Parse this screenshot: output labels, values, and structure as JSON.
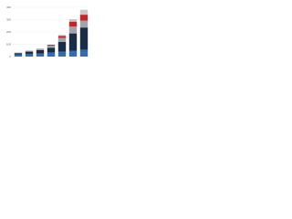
{
  "chart_data": {
    "type": "stacked_bar",
    "categories": [
      null,
      null,
      null,
      null,
      null,
      null,
      null
    ],
    "series": [
      {
        "color": "#2f6db5",
        "values": [
          16,
          20,
          24,
          32,
          40,
          48,
          56
        ]
      },
      {
        "color": "#1b2c45",
        "values": [
          12,
          20,
          28,
          40,
          80,
          140,
          180
        ]
      },
      {
        "color": "#a0a5ab",
        "values": [
          4,
          8,
          12,
          16,
          32,
          56,
          56
        ]
      },
      {
        "color": "#c0272d",
        "values": [
          0,
          0,
          0,
          8,
          16,
          40,
          48
        ]
      },
      {
        "color": "#c8c8c8",
        "values": [
          0,
          0,
          0,
          0,
          8,
          20,
          40
        ]
      }
    ],
    "ylim": [
      0,
      400
    ],
    "yticks": [
      0,
      100,
      200,
      300,
      400
    ],
    "grid": true
  }
}
